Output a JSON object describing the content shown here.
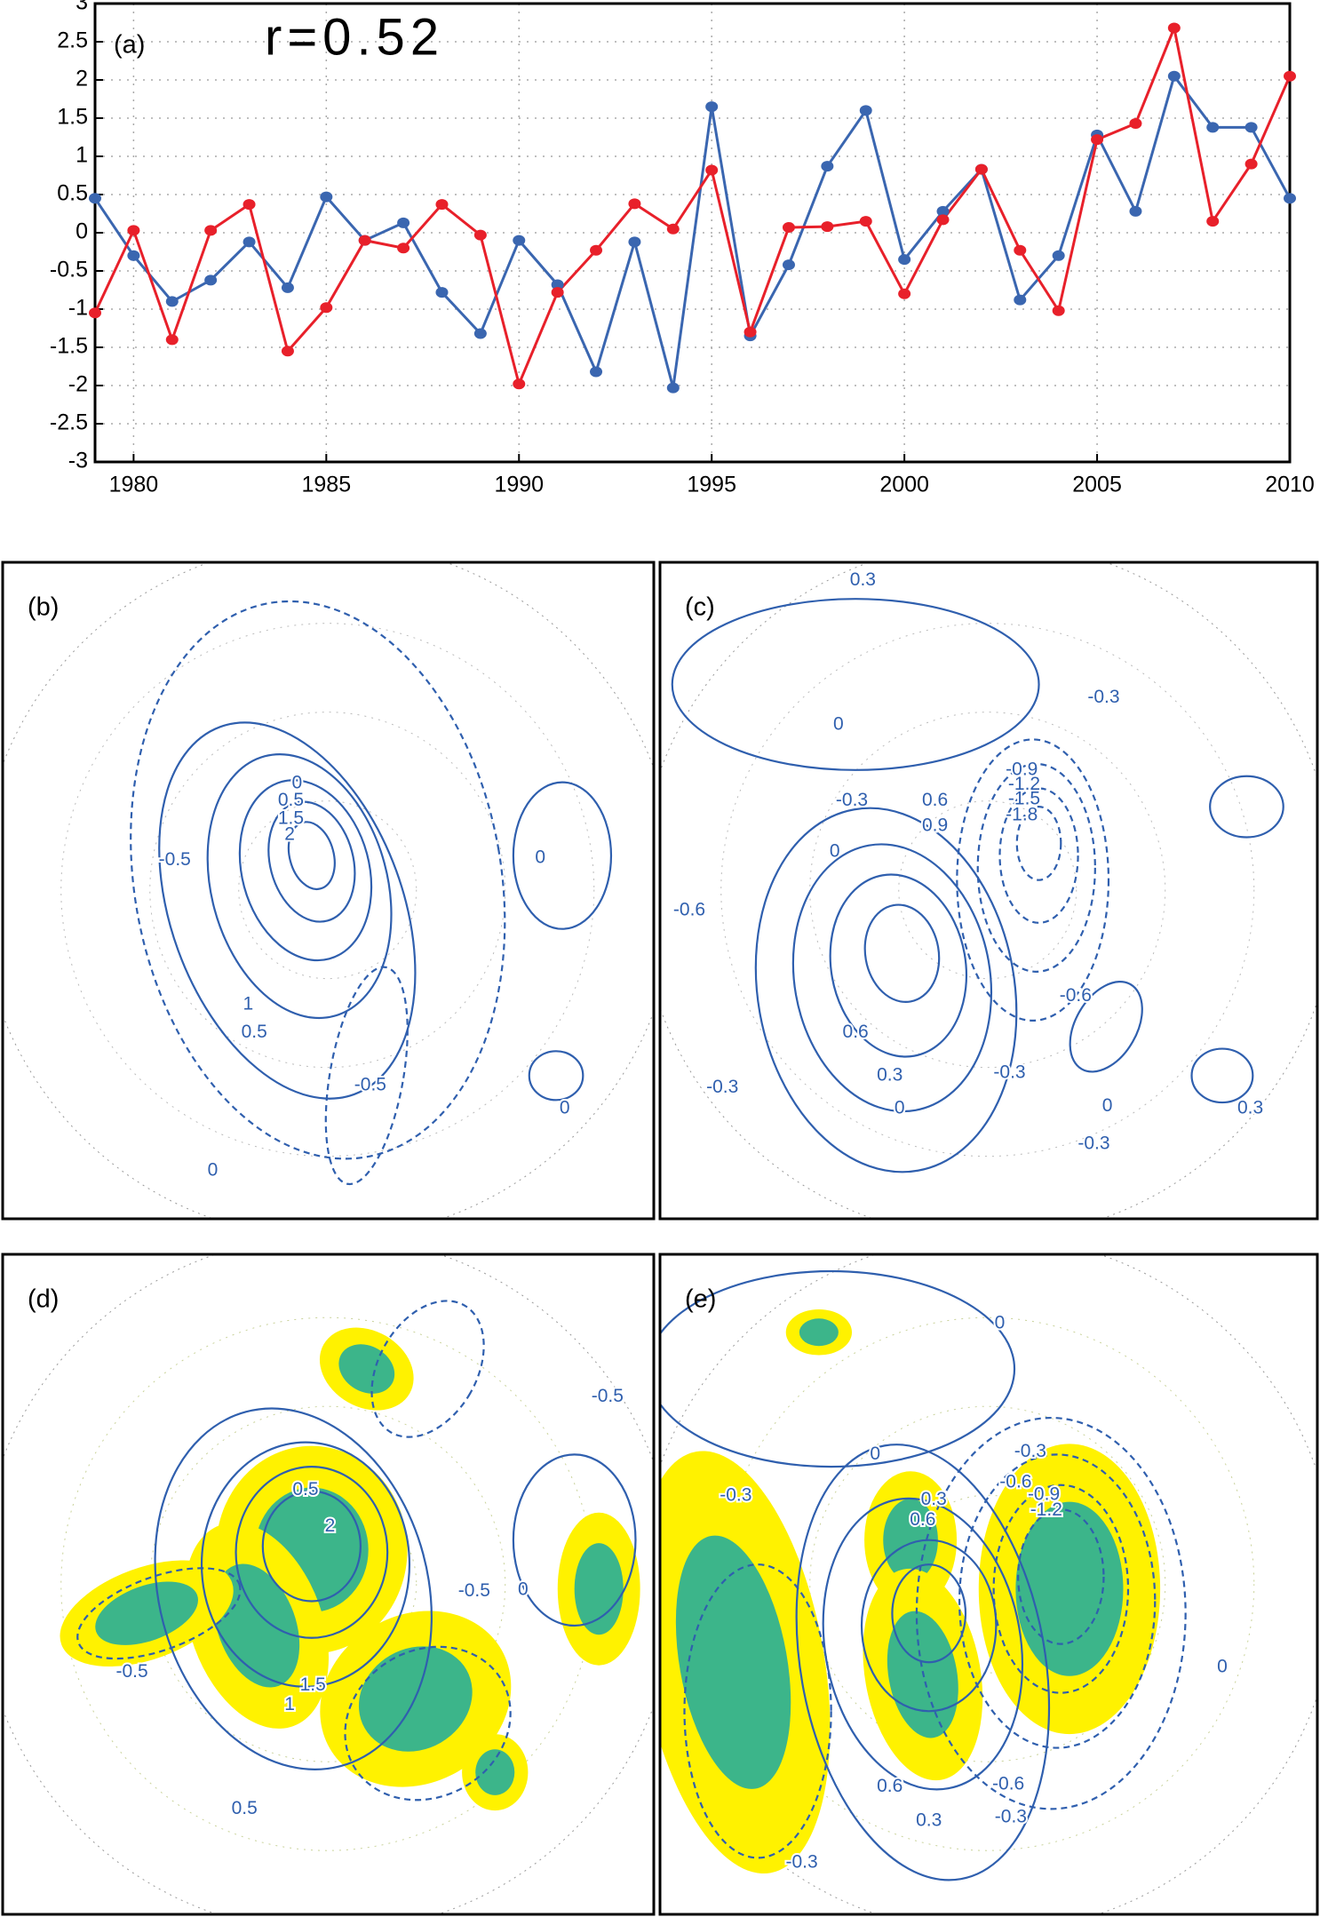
{
  "chart_data": {
    "type": "line",
    "panel_label": "(a)",
    "annotation": "r=0.52",
    "x": [
      1979,
      1980,
      1981,
      1982,
      1983,
      1984,
      1985,
      1986,
      1987,
      1988,
      1989,
      1990,
      1991,
      1992,
      1993,
      1994,
      1995,
      1996,
      1997,
      1998,
      1999,
      2000,
      2001,
      2002,
      2003,
      2004,
      2005,
      2006,
      2007,
      2008,
      2009,
      2010
    ],
    "series": [
      {
        "color": "#3a66b0",
        "values": [
          0.45,
          -0.3,
          -0.9,
          -0.62,
          -0.12,
          -0.72,
          0.47,
          -0.1,
          0.13,
          -0.78,
          -1.32,
          -0.1,
          -0.68,
          -1.82,
          -0.12,
          -2.03,
          1.65,
          -1.35,
          -0.42,
          0.87,
          1.6,
          -0.35,
          0.28,
          0.83,
          -0.88,
          -0.3,
          1.28,
          0.28,
          2.05,
          1.38,
          1.38,
          0.45
        ]
      },
      {
        "color": "#e8202a",
        "values": [
          -1.05,
          0.03,
          -1.4,
          0.03,
          0.37,
          -1.55,
          -0.98,
          -0.1,
          -0.2,
          0.37,
          -0.03,
          -1.98,
          -0.78,
          -0.23,
          0.38,
          0.05,
          0.82,
          -1.3,
          0.07,
          0.08,
          0.15,
          -0.8,
          0.17,
          0.83,
          -0.23,
          -1.02,
          1.22,
          1.43,
          2.68,
          0.15,
          0.9,
          2.05
        ]
      }
    ],
    "xlim": [
      1979,
      2010
    ],
    "ylim": [
      -3,
      3
    ],
    "xticks": [
      1980,
      1985,
      1990,
      1995,
      2000,
      2005,
      2010
    ],
    "yticks": [
      -3,
      -2.5,
      -2,
      -1.5,
      -1,
      -0.5,
      0,
      0.5,
      1,
      1.5,
      2,
      2.5,
      3
    ],
    "grid": true
  },
  "maps": [
    {
      "panel": "(b)",
      "contour_labels": [
        "0",
        "0.5",
        "1.5",
        "2",
        "-0.5",
        "0",
        "1",
        "0.5",
        "-0.5",
        "0",
        "0"
      ]
    },
    {
      "panel": "(c)",
      "contour_labels": [
        "0.3",
        "-0.3",
        "0",
        "-0.9",
        "-1.2",
        "-1.5",
        "-1.8",
        "-0.3",
        "0.6",
        "0.9",
        "0",
        "-0.6",
        "-0.6",
        "0.6",
        "0.3",
        "-0.3",
        "0",
        "0",
        "0.3",
        "-0.3",
        "-0.3"
      ]
    },
    {
      "panel": "(d)",
      "contour_labels": [
        "-0.5",
        "0.5",
        "2",
        "-0.5",
        "0",
        "1.5",
        "1",
        "-0.5",
        "0.5"
      ]
    },
    {
      "panel": "(e)",
      "contour_labels": [
        "0",
        "0",
        "-0.3",
        "-0.3",
        "-0.6",
        "0.3",
        "0.6",
        "-0.9",
        "-1.2",
        "0",
        "0.6",
        "0.3",
        "-0.6",
        "-0.3",
        "-0.3"
      ]
    }
  ]
}
